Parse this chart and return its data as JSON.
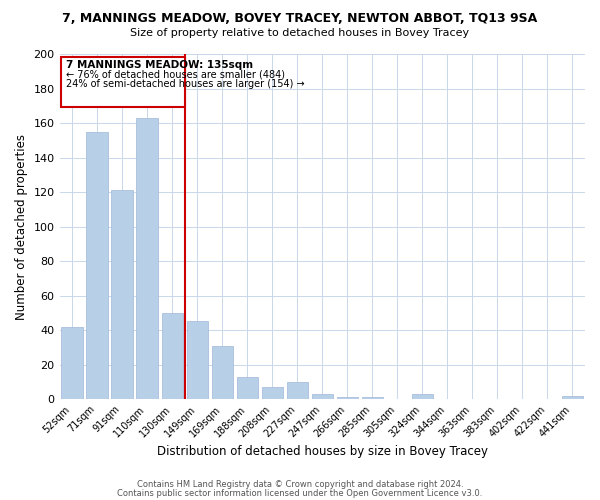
{
  "title": "7, MANNINGS MEADOW, BOVEY TRACEY, NEWTON ABBOT, TQ13 9SA",
  "subtitle": "Size of property relative to detached houses in Bovey Tracey",
  "xlabel": "Distribution of detached houses by size in Bovey Tracey",
  "ylabel": "Number of detached properties",
  "categories": [
    "52sqm",
    "71sqm",
    "91sqm",
    "110sqm",
    "130sqm",
    "149sqm",
    "169sqm",
    "188sqm",
    "208sqm",
    "227sqm",
    "247sqm",
    "266sqm",
    "285sqm",
    "305sqm",
    "324sqm",
    "344sqm",
    "363sqm",
    "383sqm",
    "402sqm",
    "422sqm",
    "441sqm"
  ],
  "values": [
    42,
    155,
    121,
    163,
    50,
    45,
    31,
    13,
    7,
    10,
    3,
    1,
    1,
    0,
    3,
    0,
    0,
    0,
    0,
    0,
    2
  ],
  "bar_color": "#b8cfe8",
  "bar_edge_color": "#a0b8d8",
  "vline_x_idx": 4,
  "vline_color": "#cc0000",
  "annotation_title": "7 MANNINGS MEADOW: 135sqm",
  "annotation_line1": "← 76% of detached houses are smaller (484)",
  "annotation_line2": "24% of semi-detached houses are larger (154) →",
  "box_edge_color": "#cc0000",
  "ylim": [
    0,
    200
  ],
  "yticks": [
    0,
    20,
    40,
    60,
    80,
    100,
    120,
    140,
    160,
    180,
    200
  ],
  "footer1": "Contains HM Land Registry data © Crown copyright and database right 2024.",
  "footer2": "Contains public sector information licensed under the Open Government Licence v3.0.",
  "bg_color": "#ffffff",
  "grid_color": "#c8d8ea"
}
